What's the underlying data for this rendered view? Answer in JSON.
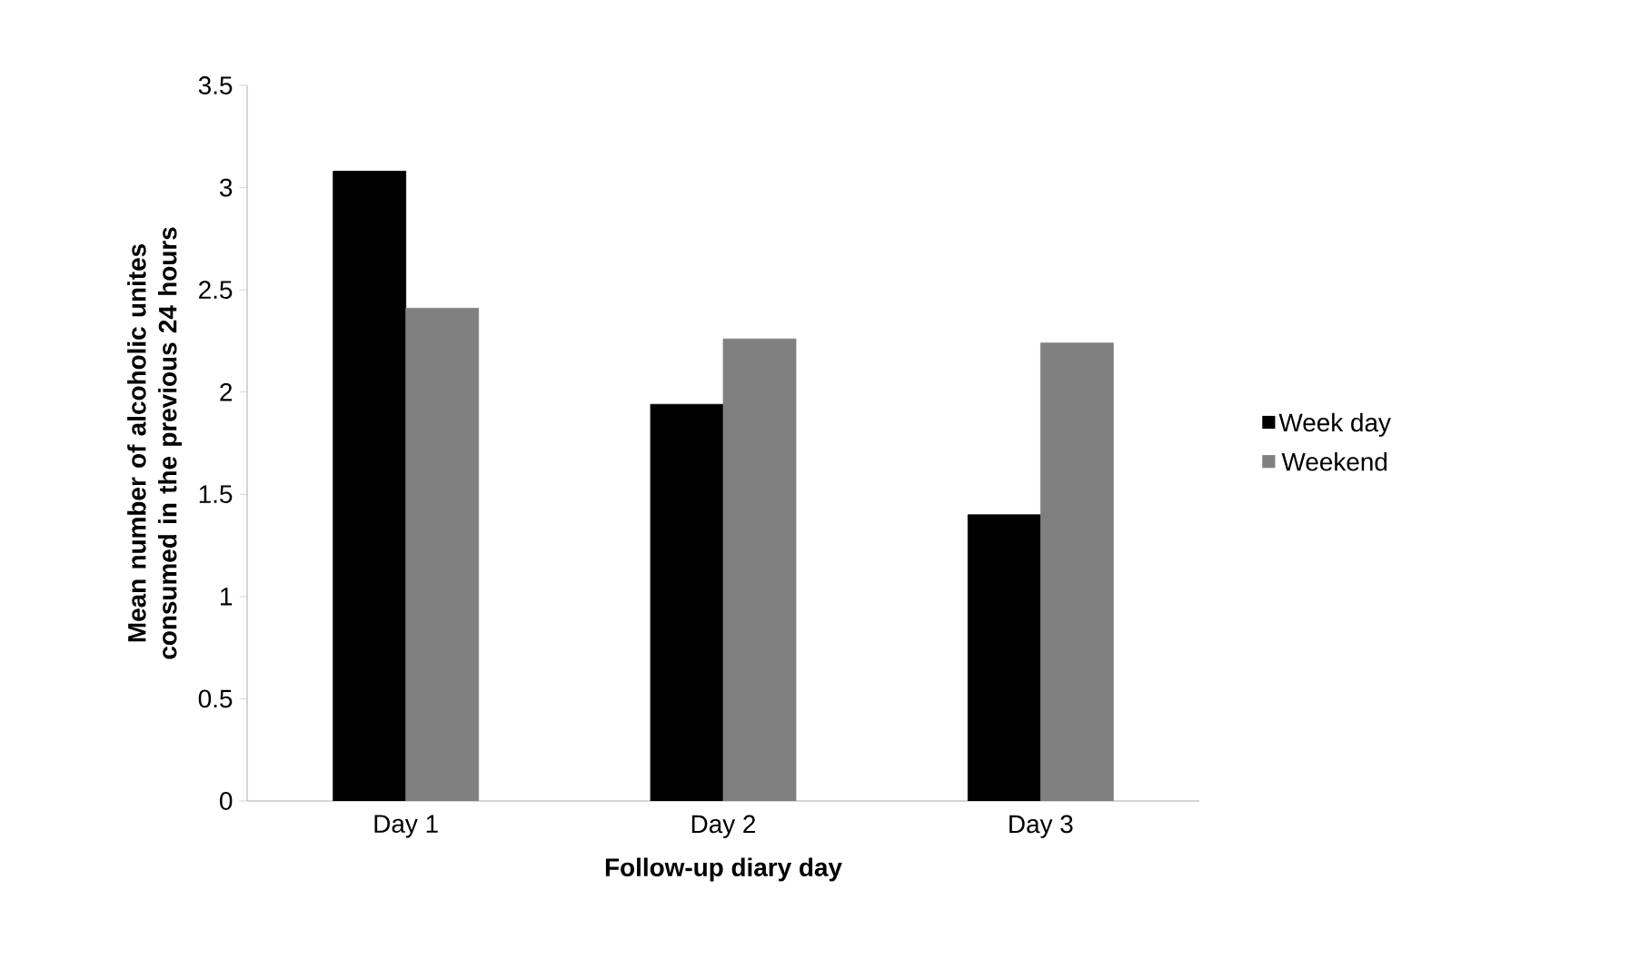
{
  "chart_data": {
    "type": "bar",
    "xlabel": "Follow-up diary day",
    "ylabel": "Mean number of alcoholic unites consumed in the previous 24 hours",
    "categories": [
      "Day 1",
      "Day 2",
      "Day 3"
    ],
    "series": [
      {
        "name": "Week day",
        "color": "#000000",
        "values": [
          3.08,
          1.94,
          1.4
        ]
      },
      {
        "name": "Weekend",
        "color": "#808080",
        "values": [
          2.41,
          2.26,
          2.24
        ]
      }
    ],
    "ylim": [
      0,
      3.5
    ],
    "yticks": [
      0,
      0.5,
      1,
      1.5,
      2,
      2.5,
      3,
      3.5
    ],
    "grid": false,
    "legend": "right"
  }
}
